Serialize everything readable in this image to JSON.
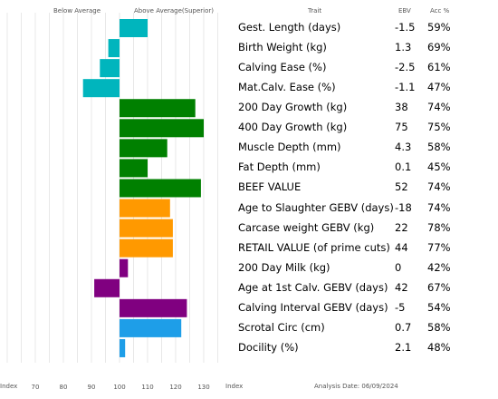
{
  "headers": {
    "below": "Below Average",
    "above": "Above Average(Superior)",
    "trait": "Trait",
    "ebv": "EBV",
    "acc": "Acc %"
  },
  "footer": {
    "index_left": "Index",
    "index_right": "Index",
    "analysis_date": "Analysis Date:  06/09/2024"
  },
  "chart_data": {
    "type": "bar",
    "orientation": "horizontal",
    "baseline": 100,
    "xlim": [
      60,
      135
    ],
    "xticks": [
      70,
      80,
      90,
      100,
      110,
      120,
      130
    ],
    "grid": true,
    "categories": [
      "Gest. Length (days)",
      "Birth Weight (kg)",
      "Calving Ease (%)",
      "Mat.Calv. Ease (%)",
      "200 Day Growth (kg)",
      "400 Day Growth (kg)",
      "Muscle Depth (mm)",
      "Fat Depth (mm)",
      "BEEF VALUE",
      "Age to Slaughter GEBV (days)",
      "Carcase weight GEBV (kg)",
      "RETAIL VALUE (of prime cuts)",
      "200 Day Milk (kg)",
      "Age at 1st Calv. GEBV (days)",
      "Calving Interval GEBV (days)",
      "Scrotal Circ (cm)",
      "Docility (%)"
    ],
    "values": [
      110,
      96,
      93,
      87,
      127,
      130,
      117,
      110,
      129,
      118,
      119,
      119,
      103,
      91,
      124,
      122,
      102
    ],
    "colors": [
      "#00b5bd",
      "#00b5bd",
      "#00b5bd",
      "#00b5bd",
      "#008000",
      "#008000",
      "#008000",
      "#008000",
      "#008000",
      "#ff9900",
      "#ff9900",
      "#ff9900",
      "#800080",
      "#800080",
      "#800080",
      "#1e9ee8",
      "#1e9ee8"
    ],
    "ebv": [
      "-1.5",
      "1.3",
      "-2.5",
      "-1.1",
      "38",
      "75",
      "4.3",
      "0.1",
      "52",
      "-18",
      "22",
      "44",
      "0",
      "42",
      "-5",
      "0.7",
      "2.1"
    ],
    "acc": [
      "59%",
      "69%",
      "61%",
      "47%",
      "74%",
      "75%",
      "58%",
      "45%",
      "74%",
      "74%",
      "78%",
      "77%",
      "42%",
      "67%",
      "54%",
      "58%",
      "48%"
    ]
  }
}
